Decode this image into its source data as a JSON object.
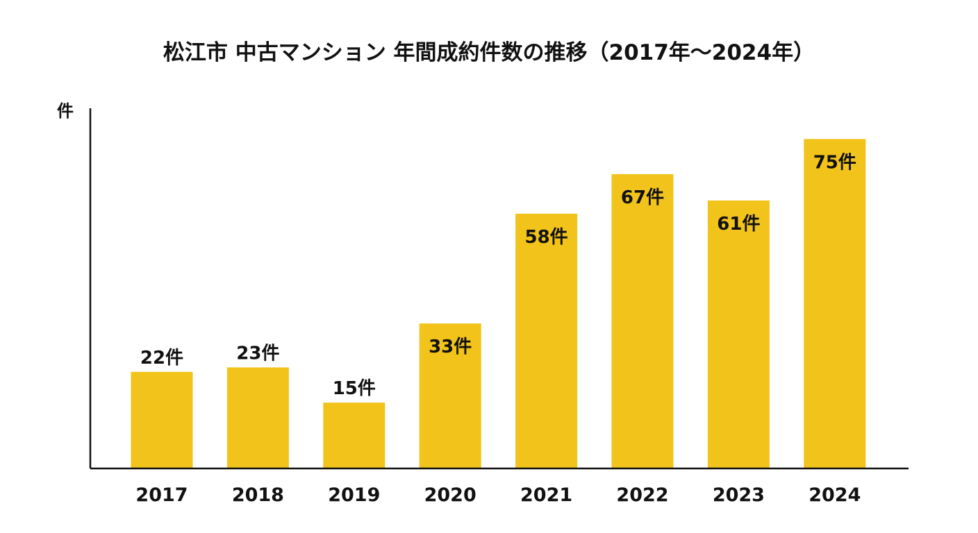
{
  "chart_data": {
    "type": "bar",
    "title": "松江市 中古マンション 年間成約件数の推移（2017年〜2024年）",
    "xlabel": "",
    "ylabel": "件",
    "categories": [
      "2017",
      "2018",
      "2019",
      "2020",
      "2021",
      "2022",
      "2023",
      "2024"
    ],
    "values": [
      22,
      23,
      15,
      33,
      58,
      67,
      61,
      75
    ],
    "data_labels": [
      "22件",
      "23件",
      "15件",
      "33件",
      "58件",
      "67件",
      "61件",
      "75件"
    ],
    "ylim": [
      0,
      82
    ],
    "bar_color": "#F2C31B",
    "axis_color": "#111111",
    "grid": false,
    "legend": false
  }
}
